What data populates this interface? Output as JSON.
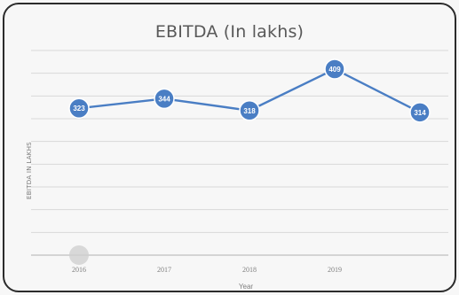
{
  "chart_data": {
    "type": "line",
    "title": "EBITDA (In lakhs)",
    "xlabel": "Year",
    "ylabel": "EBITDA IN LAKHS",
    "categories": [
      "2016",
      "2017",
      "2018",
      "2019",
      ""
    ],
    "series": [
      {
        "values": [
          323,
          344,
          318,
          409,
          314
        ],
        "color": "#4a7ec4"
      }
    ],
    "data_labels": [
      "323",
      "344",
      "318",
      "409",
      "314"
    ],
    "ylim": [
      0,
      450
    ],
    "grid": true,
    "legend": "none",
    "colors": {
      "line": "#4a7ec4",
      "marker": "#4a7ec4",
      "grid": "#d9d9d9",
      "axis": "#bfbfbf"
    }
  }
}
